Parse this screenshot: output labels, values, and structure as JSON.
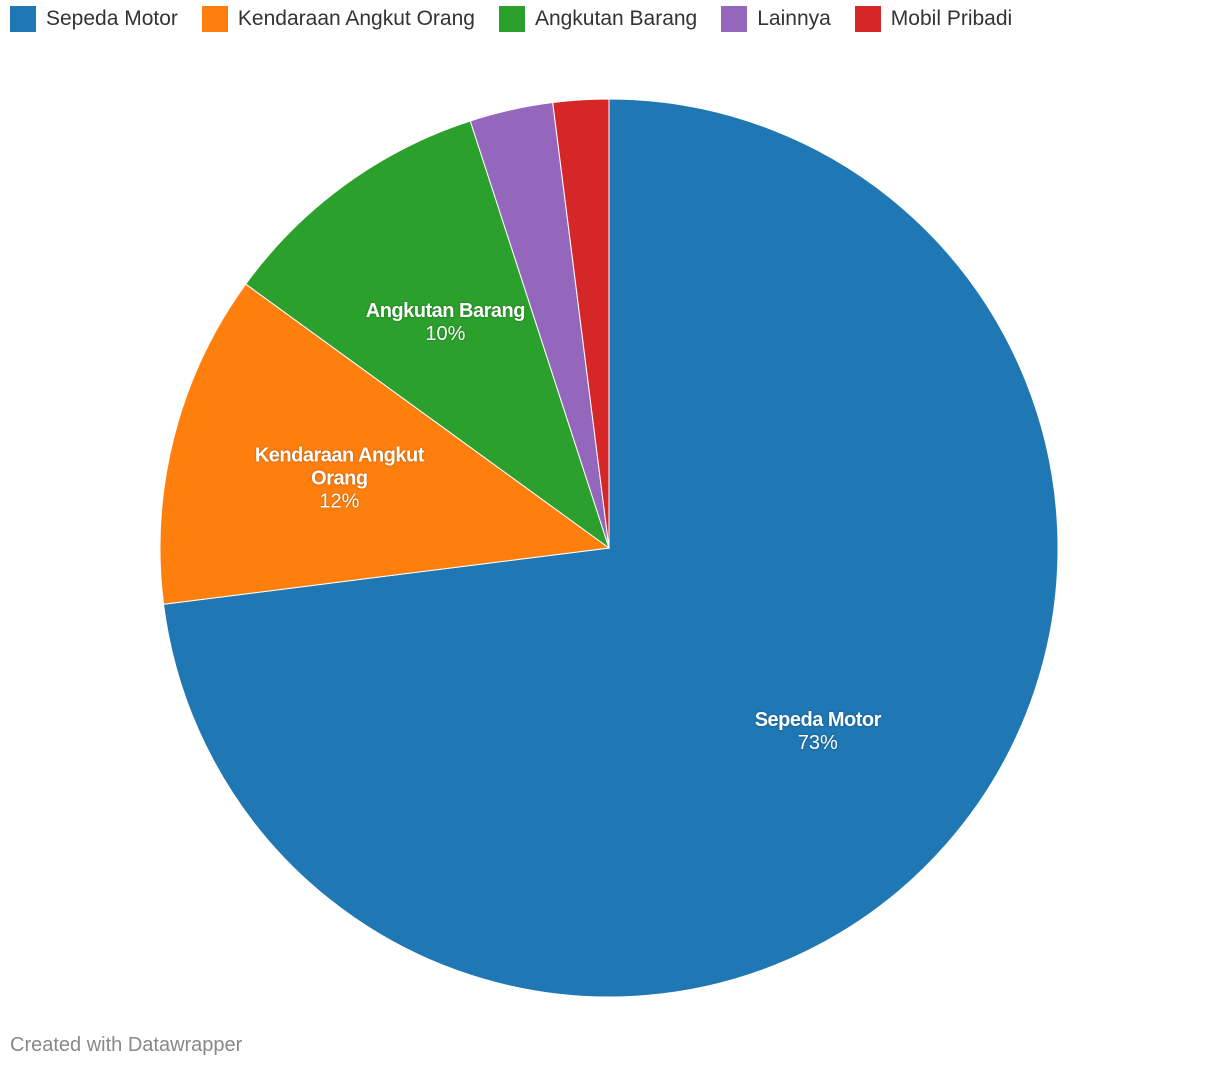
{
  "chart_data": {
    "type": "pie",
    "categories": [
      "Sepeda Motor",
      "Kendaraan Angkut Orang",
      "Angkutan Barang",
      "Lainnya",
      "Mobil Pribadi"
    ],
    "values": [
      73,
      12,
      10,
      3,
      2
    ],
    "value_labels": [
      "73%",
      "12%",
      "10%",
      null,
      null
    ],
    "colors": [
      "#1f77b4",
      "#ff7f0e",
      "#2ca02c",
      "#9467bd",
      "#d62728"
    ]
  },
  "credit": "Created with Datawrapper"
}
